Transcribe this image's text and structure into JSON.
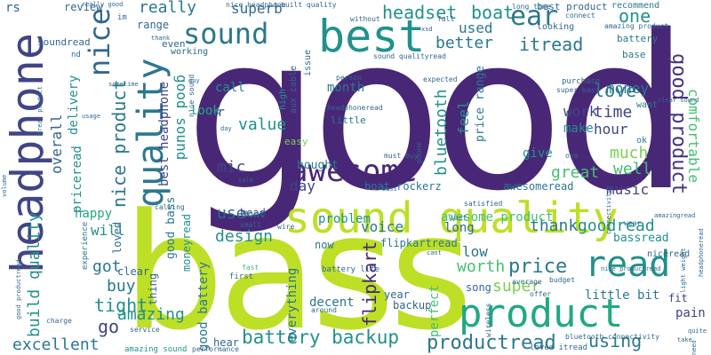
{
  "words": {
    "good": "good",
    "bass": "bass",
    "sound_quality": "sound quality",
    "product": "product",
    "headphone": "headphone",
    "best": "best",
    "read": "read",
    "quality": "quality",
    "awesome": "awesome",
    "sound": "sound",
    "nice": "nice",
    "ear": "ear",
    "good_product": "good product",
    "battery_backup": "battery backup",
    "price": "price",
    "productread": "productread",
    "nice_product": "nice product",
    "bluetooth": "bluetooth",
    "flipkart": "flipkart",
    "headset": "headset",
    "boat": "boat",
    "really": "really",
    "superb": "superb",
    "itread": "itread",
    "better": "better",
    "used": "used",
    "one": "one",
    "money": "money",
    "love": "love",
    "time": "time",
    "hour": "hour",
    "comfortable": "comfortable",
    "much": "much",
    "great": "great",
    "well": "well",
    "music": "music",
    "thank": "thank",
    "goodread": "goodread",
    "worth": "worth",
    "super": "super",
    "low": "low",
    "using": "using",
    "amazing": "amazing",
    "excellent": "excellent",
    "go": "go",
    "tight": "tight",
    "buy": "buy",
    "got": "got",
    "will": "will",
    "happy": "happy",
    "use": "use",
    "design": "design",
    "mic": "mic",
    "day": "day",
    "value": "value",
    "feel": "feel",
    "voice": "voice",
    "awesome_product": "awesome product",
    "problem": "problem",
    "bought": "bought",
    "month": "month",
    "call": "call",
    "hr": "hr",
    "look": "look",
    "build_quality": "build quality",
    "overall": "overall",
    "delivery": "delivery",
    "pricerread": "priceread",
    "best_headphone": "best headphone",
    "good_sound": "good sound",
    "good_bass": "good bass",
    "good_battery": "good battery",
    "boat_rockerz": "boat rockerz",
    "awesomeread": "awesomeread",
    "give": "give",
    "make": "make",
    "work": "work",
    "bassread": "bassread",
    "flipkartread": "flipkartread",
    "long": "long",
    "everything": "everything",
    "decent": "decent",
    "backup": "backup",
    "year": "year",
    "song": "song",
    "perfect": "perfect",
    "little_bit": "little bit",
    "pain": "pain",
    "fit": "fit",
    "head": "head",
    "dont": "dont",
    "loved": "loved",
    "moneyread": "moneyread",
    "hear": "hear",
    "now": "now",
    "clear": "clear",
    "thing": "thing",
    "rs": "rs",
    "review": "review",
    "range": "range",
    "even": "even",
    "working": "working",
    "soundread": "soundread",
    "aux_cable": "aux cable",
    "issue": "issue",
    "high": "high",
    "little": "little",
    "easy": "easy",
    "price_range": "price range",
    "recommend": "recommend",
    "best_product": "best product",
    "looking": "looking",
    "battery": "battery",
    "base": "base",
    "want": "want",
    "ok": "ok",
    "nicerread": "niceread",
    "amazing_sound": "amazing sound",
    "experience": "experience",
    "first": "first",
    "fast": "fast",
    "battery_life": "battery life",
    "loved_itread": "loved itread",
    "bluetooth_connectivity": "bluetooth connectivity",
    "nice_sound": "nice sound",
    "without": "without",
    "full": "full",
    "im": "im",
    "nd": "nd",
    "purchase": "purchase",
    "super_bass": "super bass",
    "connect": "connect",
    "long_time": "long time",
    "nice_headphone": "nice headphone",
    "built_quality": "built quality",
    "sound_qualityread": "sound qualityread",
    "amazing_product": "amazing product",
    "headphoneread": "headphoneread",
    "must_buy": "must buy",
    "osm": "osm",
    "phone": "phone",
    "expected": "expected",
    "person": "person",
    "satisfied": "satisfied",
    "last": "last",
    "wire": "wire",
    "small": "small",
    "calling": "calling",
    "budget": "budget",
    "offer": "offer",
    "average": "average",
    "wireless": "wireless",
    "performance": "performance",
    "service": "service",
    "charge": "charge",
    "around": "around",
    "volume": "volume",
    "usage": "usage",
    "sometime": "sometime",
    "guy": "guy",
    "clear_sound": "clear sound",
    "nice_productread": "nice productread",
    "great_product": "great product",
    "sale": "sale",
    "quite": "quite",
    "light_weight": "light weight",
    "wear": "wear",
    "take": "take",
    "need": "need",
    "amazingread": "amazingread",
    "headphonreread": "headphoneread",
    "connectivity": "connectivity",
    "cant": "cant",
    "xsd": "xsd",
    "day_sm": "day",
    "thank_sm": "thank",
    "bass_sm": "bass",
    "really_good": "really good",
    "good_productread": "good productread"
  },
  "colors": {
    "background": "#ffffff",
    "palette": [
      "#46327e",
      "#482777",
      "#414487",
      "#31688e",
      "#2a788e",
      "#21918c",
      "#22a884",
      "#44bf70",
      "#7ad151",
      "#bddf26"
    ]
  }
}
